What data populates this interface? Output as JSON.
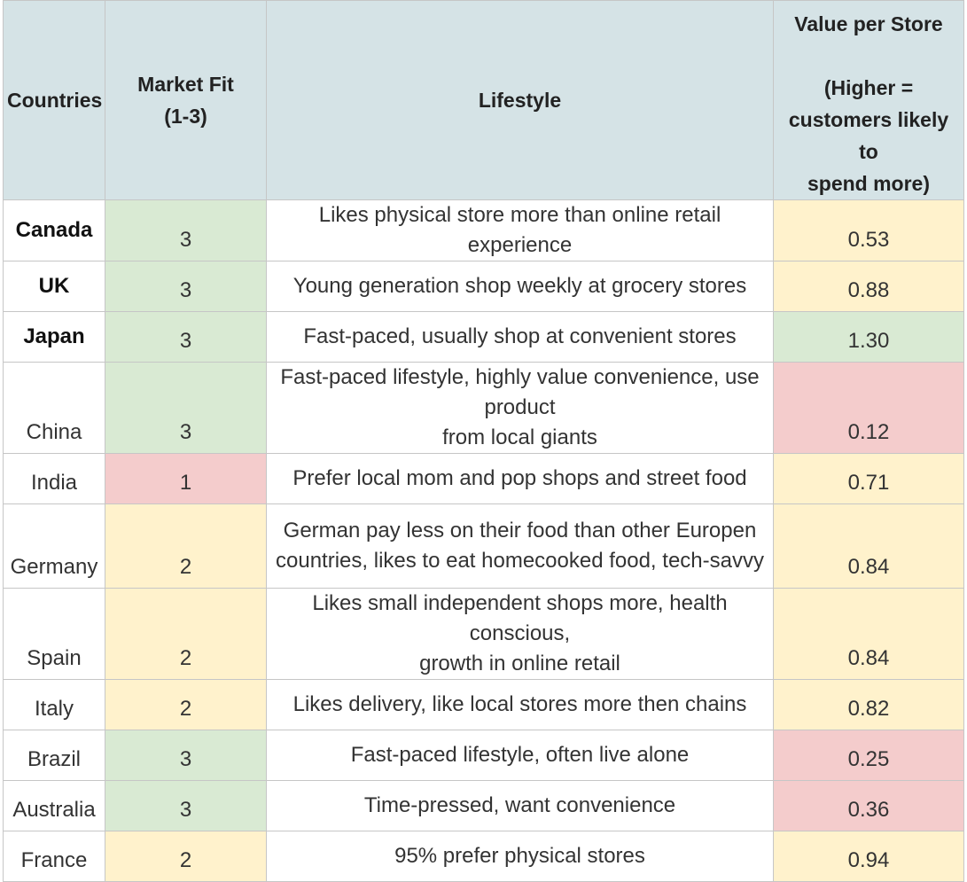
{
  "headers": {
    "countries": "Countries",
    "market_fit_1": "Market Fit",
    "market_fit_2": "(1-3)",
    "lifestyle": "Lifestyle",
    "value_1": "Value per Store",
    "value_2": "(Higher =",
    "value_3": "customers likely to",
    "value_4": "spend more)"
  },
  "rows": [
    {
      "country": "Canada",
      "fit": "3",
      "lifestyle_1": "Likes physical store more than online retail experience",
      "lifestyle_2": "",
      "value": "0.53"
    },
    {
      "country": "UK",
      "fit": "3",
      "lifestyle_1": "Young generation shop weekly at grocery stores",
      "lifestyle_2": "",
      "value": "0.88"
    },
    {
      "country": "Japan",
      "fit": "3",
      "lifestyle_1": "Fast-paced, usually shop at convenient stores",
      "lifestyle_2": "",
      "value": "1.30"
    },
    {
      "country": "China",
      "fit": "3",
      "lifestyle_1": "Fast-paced lifestyle, highly value convenience, use product",
      "lifestyle_2": "from local giants",
      "value": "0.12"
    },
    {
      "country": "India",
      "fit": "1",
      "lifestyle_1": "Prefer local mom and pop shops and street food",
      "lifestyle_2": "",
      "value": "0.71"
    },
    {
      "country": "Germany",
      "fit": "2",
      "lifestyle_1": "German pay less on their food than other Europen",
      "lifestyle_2": "countries, likes to eat homecooked food, tech-savvy",
      "value": "0.84"
    },
    {
      "country": "Spain",
      "fit": "2",
      "lifestyle_1": "Likes small independent shops more, health conscious,",
      "lifestyle_2": "growth in online retail",
      "value": "0.84"
    },
    {
      "country": "Italy",
      "fit": "2",
      "lifestyle_1": "Likes delivery, like local stores more then chains",
      "lifestyle_2": "",
      "value": "0.82"
    },
    {
      "country": "Brazil",
      "fit": "3",
      "lifestyle_1": "Fast-paced lifestyle, often live alone",
      "lifestyle_2": "",
      "value": "0.25"
    },
    {
      "country": "Australia",
      "fit": "3",
      "lifestyle_1": "Time-pressed, want convenience",
      "lifestyle_2": "",
      "value": "0.36"
    },
    {
      "country": "France",
      "fit": "2",
      "lifestyle_1": "95% prefer physical stores",
      "lifestyle_2": "",
      "value": "0.94"
    }
  ],
  "colors": {
    "header": "#d5e3e6",
    "green": "#d9ead3",
    "red": "#f4cccc",
    "yellow": "#fff2cc"
  }
}
